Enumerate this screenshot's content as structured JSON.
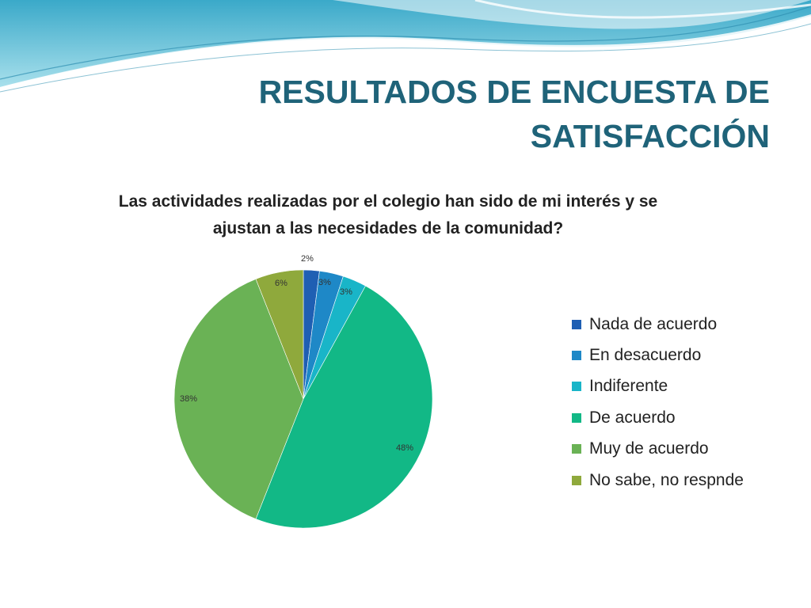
{
  "slide": {
    "title": "RESULTADOS DE ENCUESTA DE SATISFACCIÓN"
  },
  "colors": {
    "header_band_light": "#8fd6e8",
    "header_band_mid": "#3bb2cf",
    "header_band_white": "#ffffff",
    "title": "#1f6379"
  },
  "chart_data": {
    "type": "pie",
    "title": "Las actividades realizadas por el colegio han sido de mi interés y se ajustan a las necesidades de la comunidad?",
    "legend_position": "right",
    "slices": [
      {
        "label": "Nada de acuerdo",
        "value": 2,
        "label_text": "2%",
        "color": "#1f5fb3"
      },
      {
        "label": "En desacuerdo",
        "value": 3,
        "label_text": "3%",
        "color": "#1e88c7"
      },
      {
        "label": "Indiferente",
        "value": 3,
        "label_text": "3%",
        "color": "#19b5c8"
      },
      {
        "label": "De acuerdo",
        "value": 48,
        "label_text": "48%",
        "color": "#12b886"
      },
      {
        "label": "Muy de acuerdo",
        "value": 38,
        "label_text": "38%",
        "color": "#6ab255"
      },
      {
        "label": "No sabe, no respnde",
        "value": 6,
        "label_text": "6%",
        "color": "#8fa93c"
      }
    ]
  }
}
